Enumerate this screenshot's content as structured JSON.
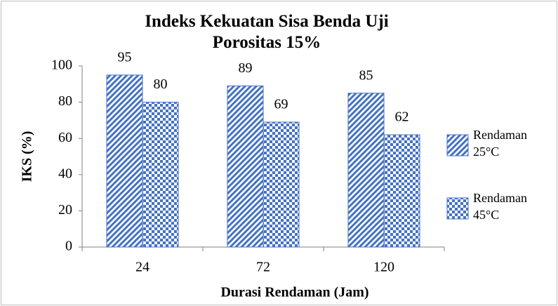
{
  "chart_data": {
    "type": "bar",
    "title": "Indeks Kekuatan Sisa Benda Uji Porositas 15%",
    "x_label": "Durasi Rendaman (Jam)",
    "y_label": "IKS (%)",
    "categories": [
      "24",
      "72",
      "120"
    ],
    "series": [
      {
        "name": "Rendaman 25°C",
        "color": "#4472c4",
        "values": [
          95,
          89,
          85
        ]
      },
      {
        "name": "Rendaman 45°C",
        "color": "#4472c4",
        "values": [
          80,
          69,
          62
        ]
      }
    ],
    "ylim": [
      0,
      100
    ],
    "yticks": [
      0,
      20,
      40,
      60,
      80,
      100
    ],
    "grid": false,
    "legend": "right"
  }
}
